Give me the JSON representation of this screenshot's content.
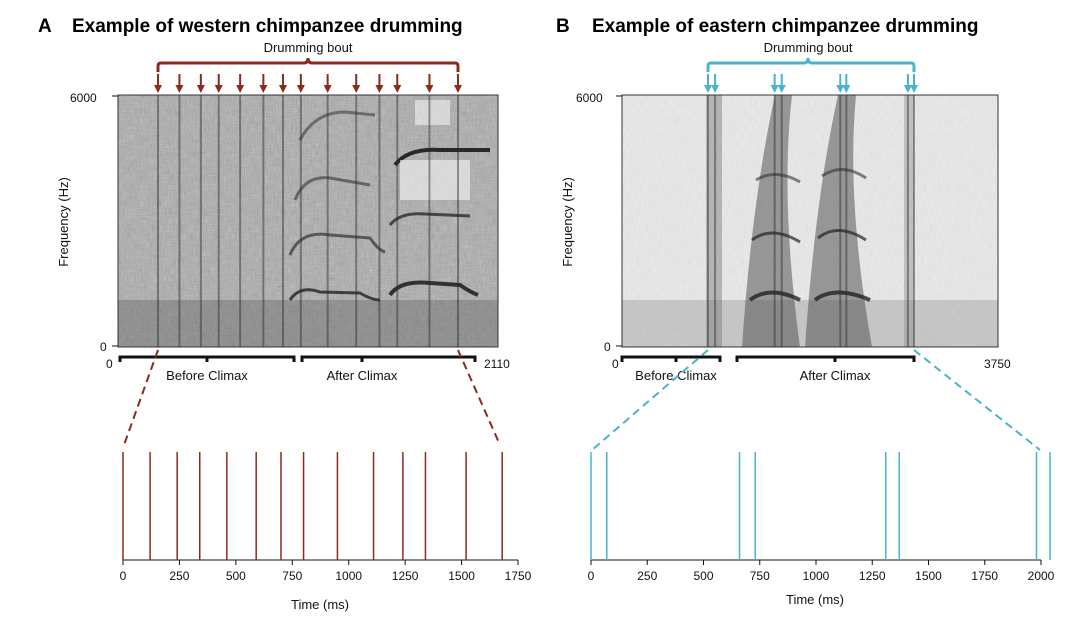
{
  "panels": [
    {
      "letter": "A",
      "title": "Example of western chimpanzee drumming",
      "bout_label": "Drumming bout",
      "ylabel": "Frequency (Hz)",
      "freq_ticks": [
        "6000",
        "0"
      ],
      "time_start": "0",
      "time_end": "2110",
      "segments": [
        "Before Climax",
        "After Climax"
      ],
      "xlabel": "Time (ms)",
      "color": "#8b2a1e"
    },
    {
      "letter": "B",
      "title": "Example of eastern chimpanzee drumming",
      "bout_label": "Drumming bout",
      "ylabel": "Frequency (Hz)",
      "freq_ticks": [
        "6000",
        "0"
      ],
      "time_start": "0",
      "time_end": "3750",
      "segments": [
        "Before Climax",
        "After Climax"
      ],
      "xlabel": "Time (ms)",
      "color": "#4ab3cc"
    }
  ],
  "chart_data": [
    {
      "type": "scatter",
      "title": "Example of western chimpanzee drumming",
      "xlabel": "Time (ms)",
      "xlim": [
        0,
        1750
      ],
      "x_ticks": [
        0,
        250,
        500,
        750,
        1000,
        1250,
        1500,
        1750
      ],
      "beat_times_ms": [
        0,
        120,
        240,
        340,
        460,
        590,
        700,
        800,
        950,
        1110,
        1240,
        1340,
        1520,
        1680
      ]
    },
    {
      "type": "scatter",
      "title": "Example of eastern chimpanzee drumming",
      "xlabel": "Time (ms)",
      "xlim": [
        0,
        2000
      ],
      "x_ticks": [
        0,
        250,
        500,
        750,
        1000,
        1250,
        1500,
        1750,
        2000
      ],
      "beat_times_ms": [
        0,
        70,
        660,
        730,
        1310,
        1370,
        1980,
        2040
      ]
    }
  ]
}
